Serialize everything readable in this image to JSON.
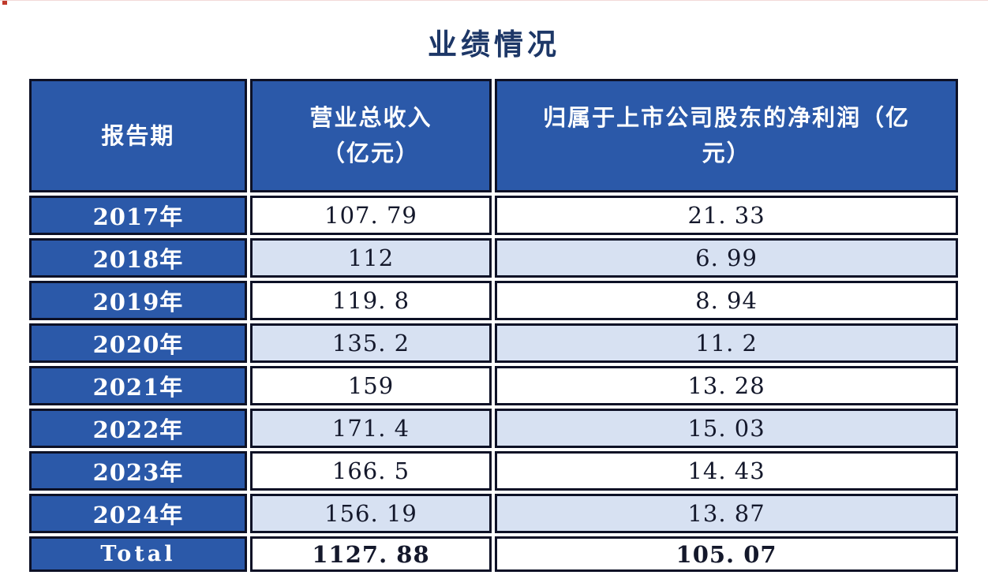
{
  "page": {
    "title": "业绩情况"
  },
  "colors": {
    "header_blue": "#2b59a9",
    "alt_row_blue": "#d7e1f2",
    "border_dark": "#0d1126",
    "title_navy": "#1d3767",
    "cell_text": "#14182b",
    "red_marker": "#c0392b"
  },
  "table": {
    "columns": [
      {
        "label": "报告期"
      },
      {
        "label": "营业总收入\n（亿元）"
      },
      {
        "label": "归属于上市公司股东的净利润（亿\n元）"
      }
    ],
    "rows": [
      {
        "period": "2017年",
        "revenue": "107. 79",
        "profit": "21. 33",
        "is_total": false
      },
      {
        "period": "2018年",
        "revenue": "112",
        "profit": "6. 99",
        "is_total": false
      },
      {
        "period": "2019年",
        "revenue": "119. 8",
        "profit": "8. 94",
        "is_total": false
      },
      {
        "period": "2020年",
        "revenue": "135. 2",
        "profit": "11. 2",
        "is_total": false
      },
      {
        "period": "2021年",
        "revenue": "159",
        "profit": "13. 28",
        "is_total": false
      },
      {
        "period": "2022年",
        "revenue": "171. 4",
        "profit": "15. 03",
        "is_total": false
      },
      {
        "period": "2023年",
        "revenue": "166. 5",
        "profit": "14. 43",
        "is_total": false
      },
      {
        "period": "2024年",
        "revenue": "156. 19",
        "profit": "13. 87",
        "is_total": false
      },
      {
        "period": "Total",
        "revenue": "1127. 88",
        "profit": "105. 07",
        "is_total": true
      }
    ]
  },
  "chart_data": {
    "type": "table",
    "title": "业绩情况",
    "categories": [
      "2017年",
      "2018年",
      "2019年",
      "2020年",
      "2021年",
      "2022年",
      "2023年",
      "2024年",
      "Total"
    ],
    "series": [
      {
        "name": "营业总收入（亿元）",
        "values": [
          107.79,
          112,
          119.8,
          135.2,
          159,
          171.4,
          166.5,
          156.19,
          1127.88
        ]
      },
      {
        "name": "归属于上市公司股东的净利润（亿元）",
        "values": [
          21.33,
          6.99,
          8.94,
          11.2,
          13.28,
          15.03,
          14.43,
          13.87,
          105.07
        ]
      }
    ],
    "notes": "Rows for 2017-2024 plus a bold Total summary row; year cells dark blue with white text; value rows alternate white and light blue."
  }
}
